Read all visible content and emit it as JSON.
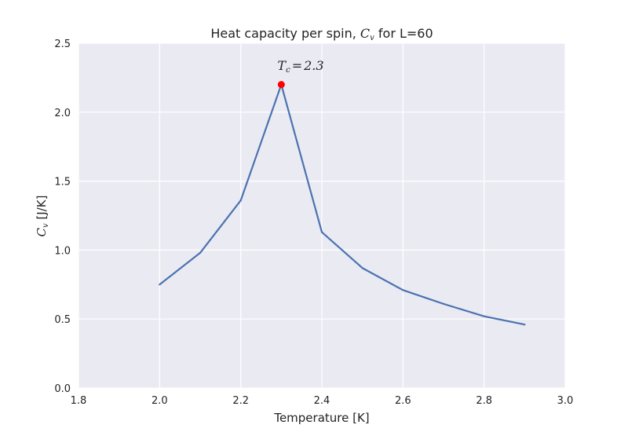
{
  "chart_data": {
    "type": "line",
    "title": {
      "prefix": "Heat capacity per spin, ",
      "symbol": "C",
      "symbol_sub": "v",
      "suffix": " for L=60"
    },
    "xlabel": "Temperature [K]",
    "ylabel": {
      "symbol": "C",
      "symbol_sub": "v",
      "suffix": " [J/K]"
    },
    "xlim": [
      1.8,
      3.0
    ],
    "ylim": [
      0.0,
      2.5
    ],
    "xticks": [
      "1.8",
      "2.0",
      "2.2",
      "2.4",
      "2.6",
      "2.8",
      "3.0"
    ],
    "yticks": [
      "0.0",
      "0.5",
      "1.0",
      "1.5",
      "2.0",
      "2.5"
    ],
    "grid": true,
    "series": [
      {
        "x": [
          2.0,
          2.1,
          2.2,
          2.3,
          2.4,
          2.5,
          2.6,
          2.7,
          2.8,
          2.9
        ],
        "y": [
          0.75,
          0.98,
          1.36,
          2.2,
          1.13,
          0.87,
          0.71,
          0.61,
          0.52,
          0.46
        ],
        "color": "#4c72b0"
      }
    ],
    "marker": {
      "x": 2.3,
      "y": 2.2,
      "color": "#ff0000",
      "annotation": {
        "symbol": "T",
        "symbol_sub": "c",
        "equals": "=",
        "value": "2.3"
      }
    },
    "colors": {
      "plot_background": "#eaeaf2",
      "gridline": "#ffffff"
    }
  }
}
